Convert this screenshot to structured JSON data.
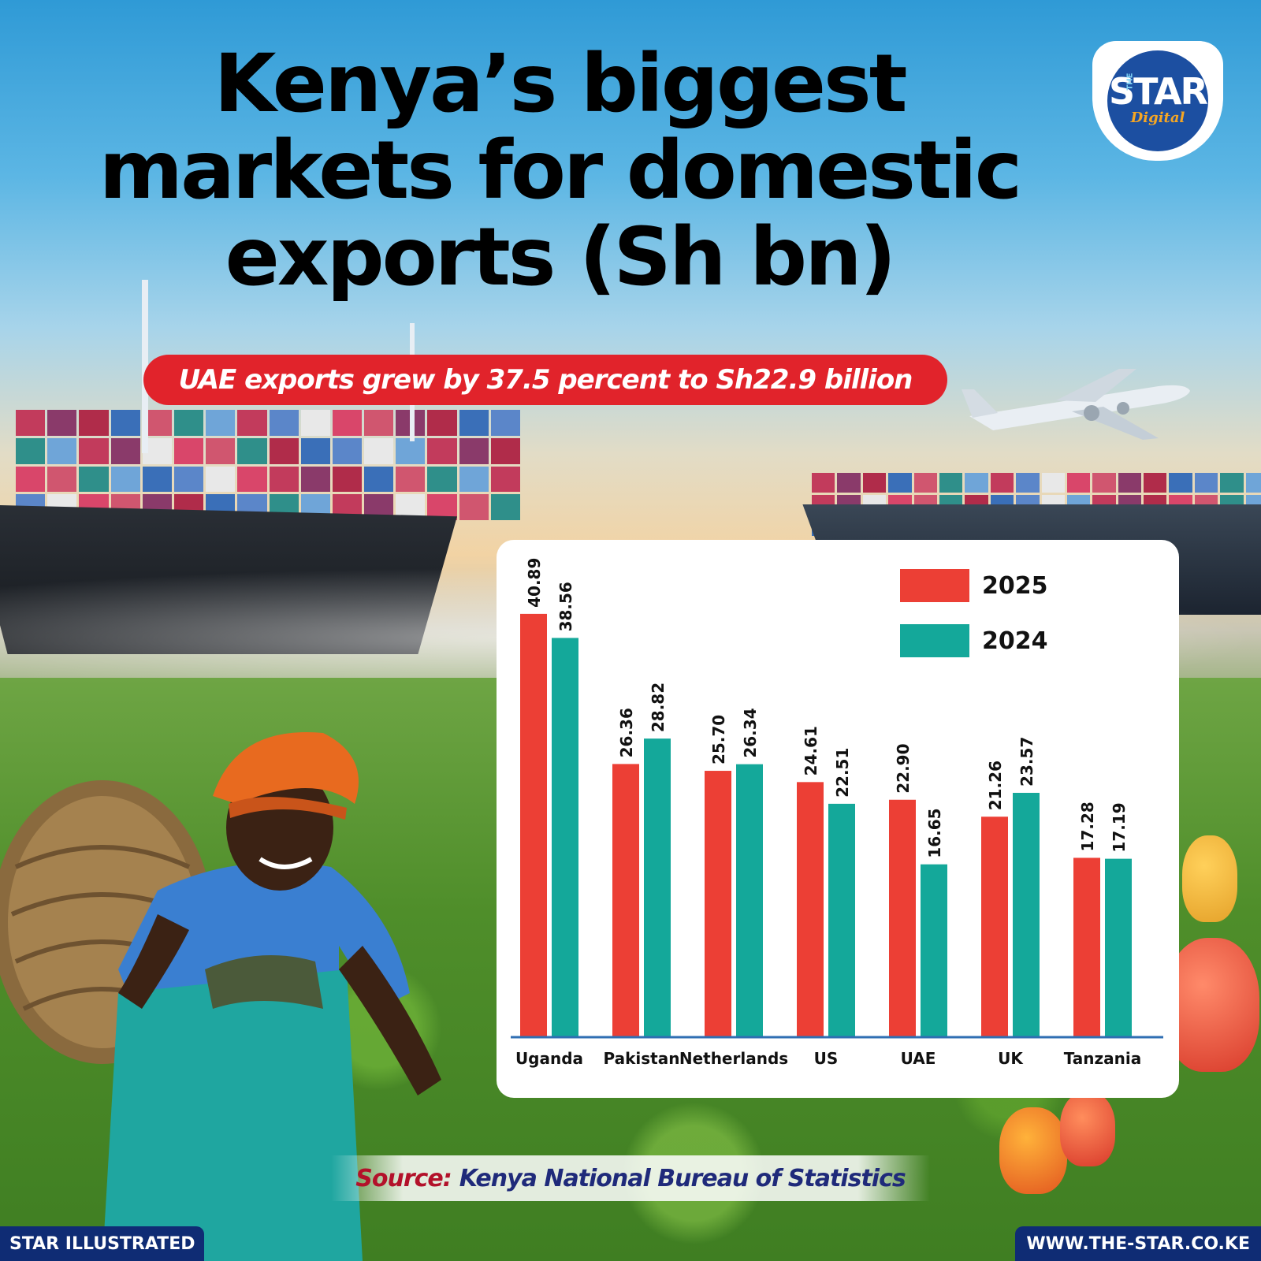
{
  "header": {
    "title_lines": [
      "Kenya’s biggest",
      "markets for domestic",
      "exports (Sh bn)"
    ],
    "subtitle": "UAE exports grew by 37.5 percent to Sh22.9 billion"
  },
  "logo": {
    "the": "THE",
    "star": "STAR",
    "digital": "Digital"
  },
  "chart_data": {
    "type": "bar",
    "title": "Kenya’s biggest markets for domestic exports (Sh bn)",
    "categories": [
      "Uganda",
      "Pakistan",
      "Netherlands",
      "US",
      "UAE",
      "UK",
      "Tanzania"
    ],
    "series": [
      {
        "name": "2025",
        "color": "#ec3f35",
        "values": [
          40.89,
          26.36,
          25.7,
          24.61,
          22.9,
          21.26,
          17.28
        ]
      },
      {
        "name": "2024",
        "color": "#14a89a",
        "values": [
          38.56,
          28.82,
          26.34,
          22.51,
          16.65,
          23.57,
          17.19
        ]
      }
    ],
    "ylim": [
      0,
      45
    ],
    "grid": false,
    "legend": "top-right",
    "axis_color": "#2f6fb3"
  },
  "source": {
    "label": "Source:",
    "text": "Kenya National Bureau of Statistics"
  },
  "footer": {
    "left": "STAR ILLUSTRATED",
    "right": "WWW.THE-STAR.CO.KE"
  }
}
